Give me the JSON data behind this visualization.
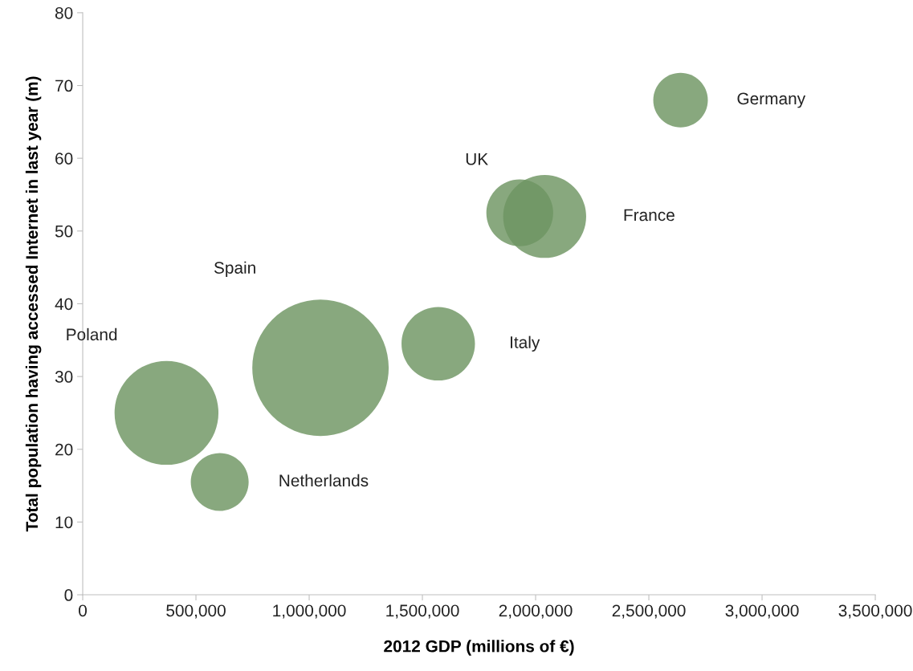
{
  "chart_data": {
    "type": "bubble",
    "xlabel": "2012 GDP (millions of €)",
    "ylabel": "Total population having accessed Internet in last year (m)",
    "series": [
      {
        "name": "Germany",
        "color": "#6e9562",
        "x": [
          2640000
        ],
        "values": [
          68
        ],
        "sizes": [
          0.16
        ]
      },
      {
        "name": "UK",
        "color": "#6e9562",
        "x": [
          1930000
        ],
        "values": [
          52.5
        ],
        "sizes": [
          0.24
        ]
      },
      {
        "name": "France",
        "color": "#6e9562",
        "x": [
          2040000
        ],
        "values": [
          52
        ],
        "sizes": [
          0.37
        ]
      },
      {
        "name": "Italy",
        "color": "#6e9562",
        "x": [
          1570000
        ],
        "values": [
          34.5
        ],
        "sizes": [
          0.29
        ]
      },
      {
        "name": "Spain",
        "color": "#6e9562",
        "x": [
          1050000
        ],
        "values": [
          31.2
        ],
        "sizes": [
          1
        ]
      },
      {
        "name": "Poland",
        "color": "#6e9562",
        "x": [
          370000
        ],
        "values": [
          25
        ],
        "sizes": [
          0.58
        ]
      },
      {
        "name": "Netherlands",
        "color": "#6e9562",
        "x": [
          605000
        ],
        "values": [
          15.5
        ],
        "sizes": [
          0.18
        ]
      }
    ],
    "xlim": [
      0,
      3500000
    ],
    "ylim": [
      0,
      80
    ],
    "xticks": [
      {
        "value": 0,
        "label": "0"
      },
      {
        "value": 500000,
        "label": "500,000"
      },
      {
        "value": 1000000,
        "label": "1,000,000"
      },
      {
        "value": 1500000,
        "label": "1,500,000"
      },
      {
        "value": 2000000,
        "label": "2,000,000"
      },
      {
        "value": 2500000,
        "label": "2,500,000"
      },
      {
        "value": 3000000,
        "label": "3,000,000"
      },
      {
        "value": 3500000,
        "label": "3,500,000"
      }
    ],
    "yticks": [
      0,
      10,
      20,
      30,
      40,
      50,
      60,
      70,
      80
    ],
    "grid": false
  }
}
